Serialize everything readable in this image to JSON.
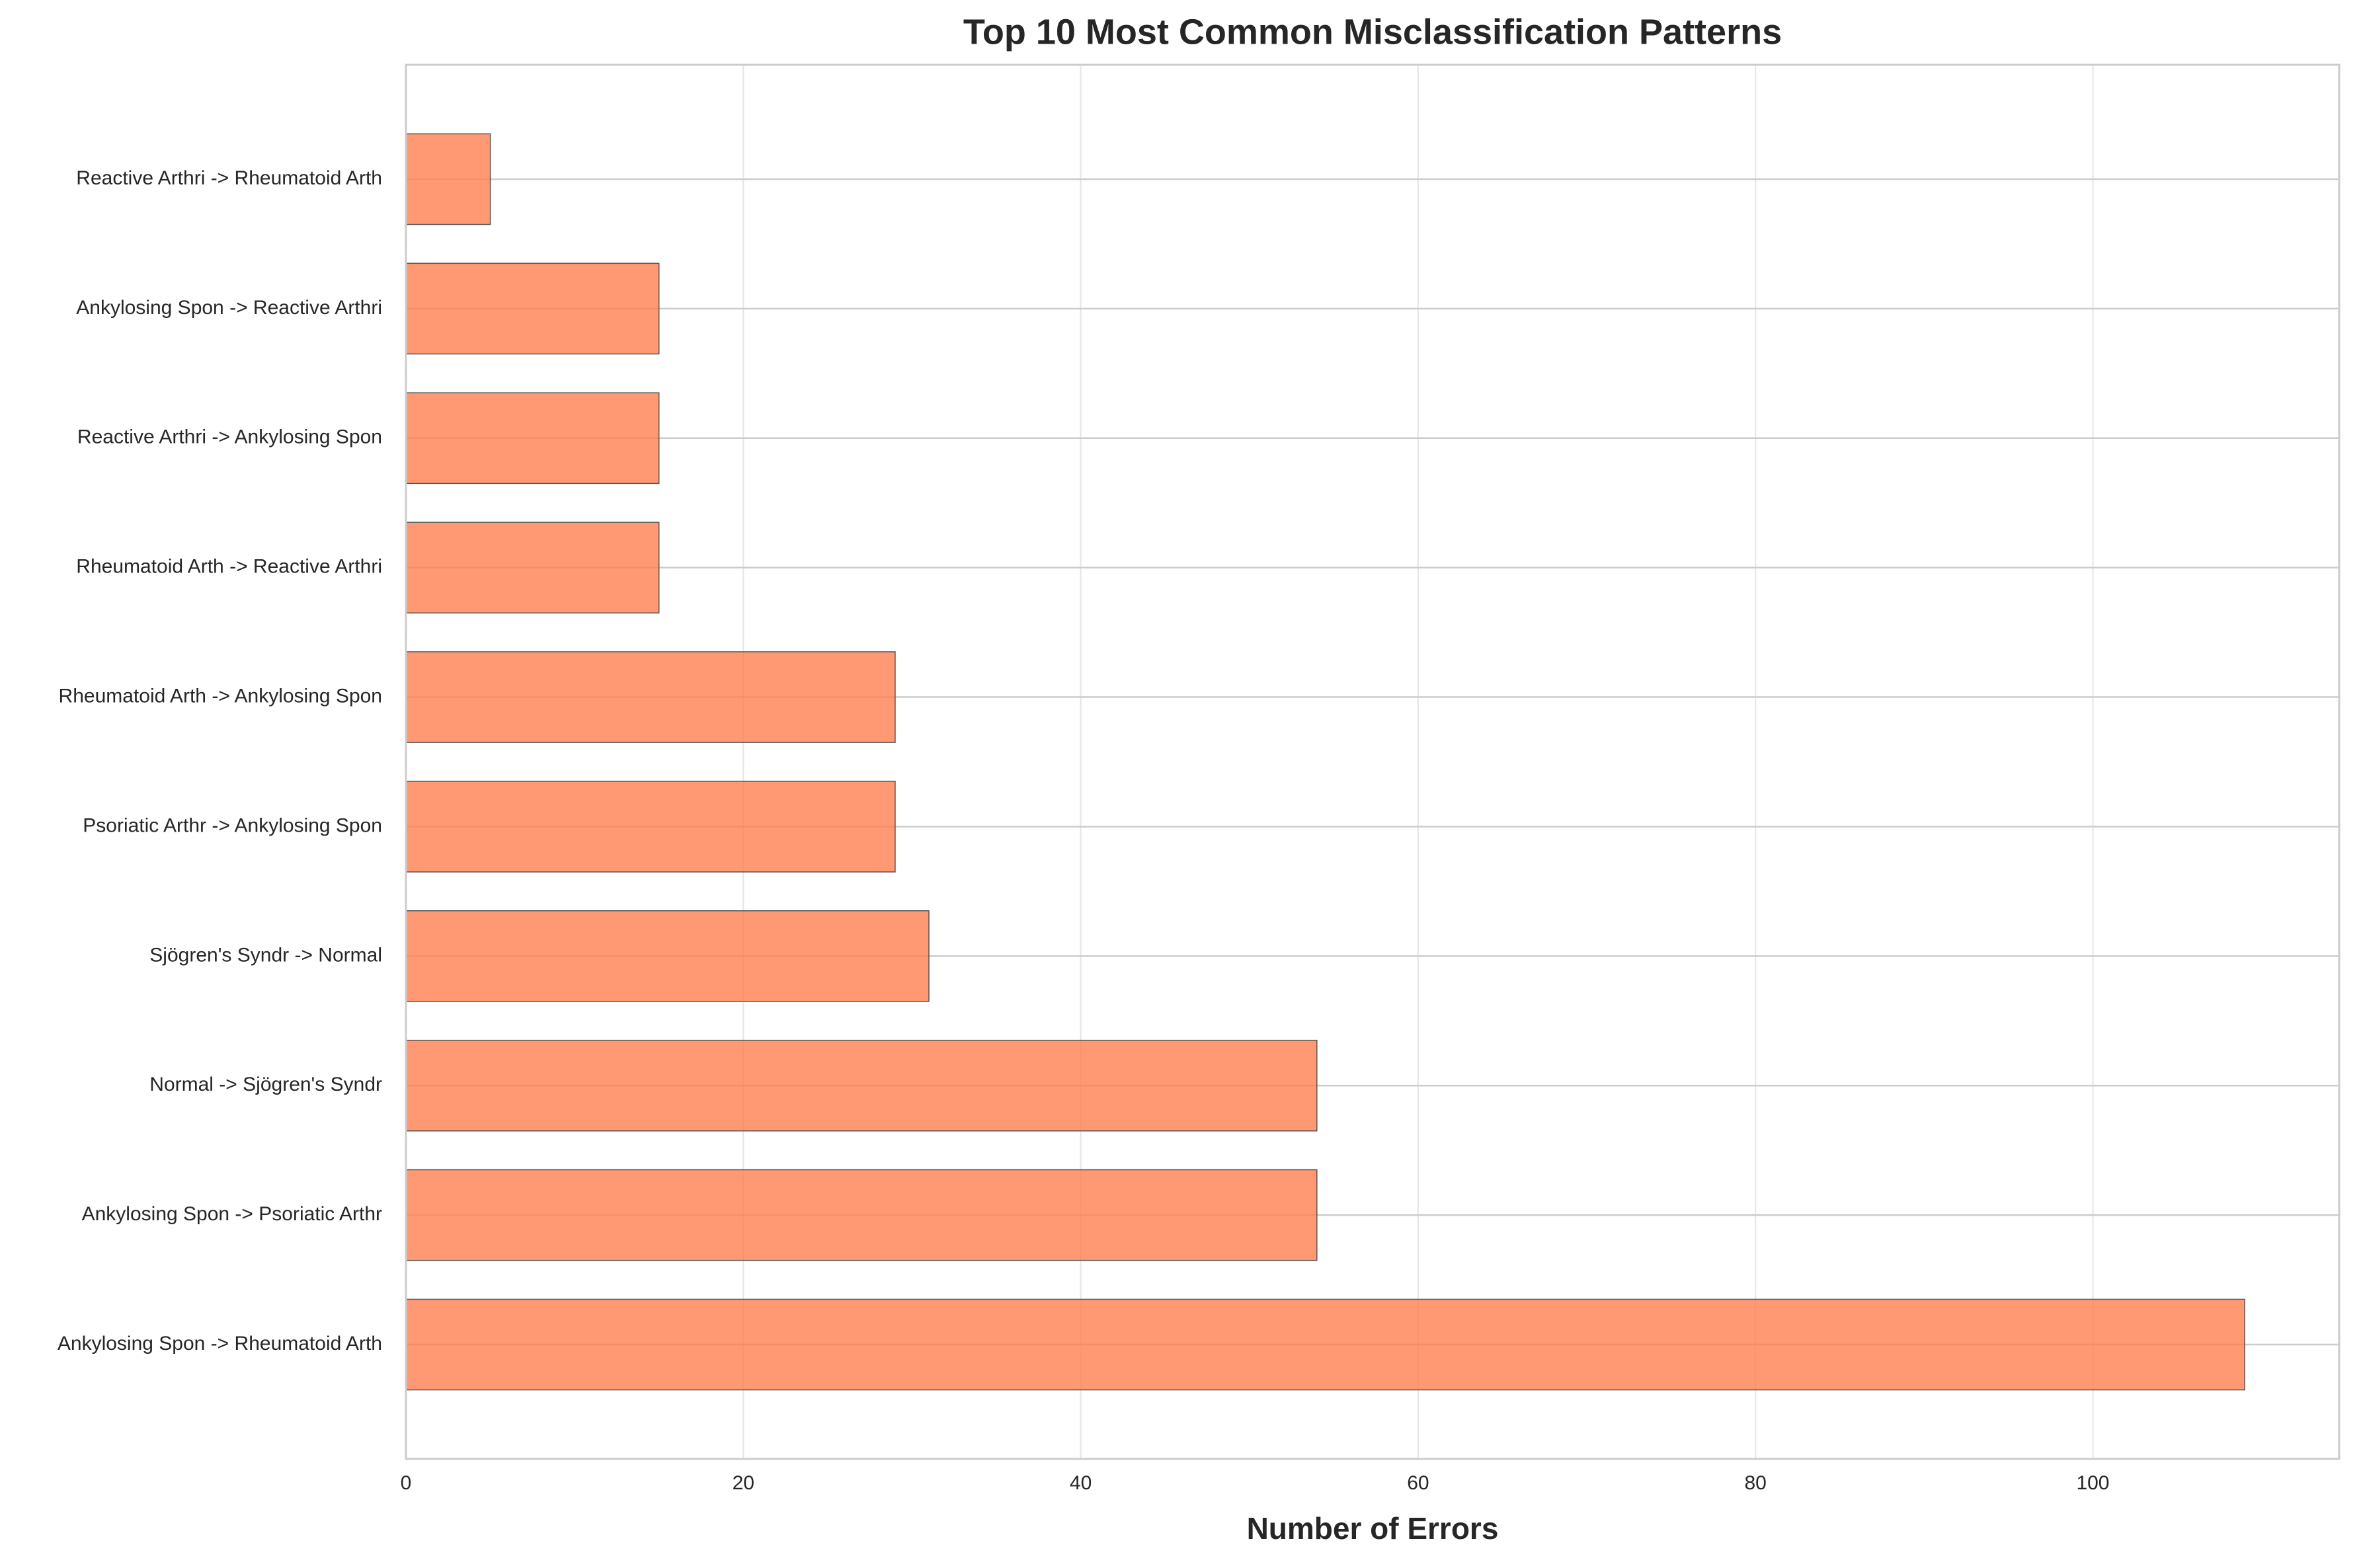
{
  "chart_data": {
    "type": "barh",
    "title": "Top 10 Most Common Misclassification Patterns",
    "x_label": "Number of Errors",
    "categories": [
      "Ankylosing Spon -> Rheumatoid Arth",
      "Ankylosing Spon -> Psoriatic Arthr",
      "Normal -> Sjögren's Syndr",
      "Sjögren's Syndr -> Normal",
      "Psoriatic Arthr -> Ankylosing Spon",
      "Rheumatoid Arth -> Ankylosing Spon",
      "Rheumatoid Arth -> Reactive Arthri",
      "Reactive Arthri -> Ankylosing Spon",
      "Ankylosing Spon -> Reactive Arthri",
      "Reactive Arthri -> Rheumatoid Arth"
    ],
    "values": [
      109,
      54,
      54,
      31,
      29,
      29,
      15,
      15,
      15,
      5
    ],
    "color": "#ff7f50",
    "xlim": [
      0,
      114.6
    ],
    "xticks": [
      0,
      20,
      40,
      60,
      80,
      100
    ],
    "grid": true
  }
}
